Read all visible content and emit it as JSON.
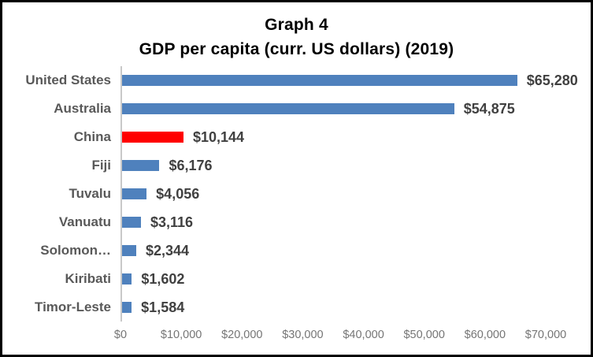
{
  "chart_data": {
    "type": "bar",
    "orientation": "horizontal",
    "title_line1": "Graph 4",
    "title_line2": "GDP per capita (curr. US dollars) (2019)",
    "categories": [
      "United States",
      "Australia",
      "China",
      "Fiji",
      "Tuvalu",
      "Vanuatu",
      "Solomon…",
      "Kiribati",
      "Timor-Leste"
    ],
    "values": [
      65280,
      54875,
      10144,
      6176,
      4056,
      3116,
      2344,
      1602,
      1584
    ],
    "value_labels": [
      "$65,280",
      "$54,875",
      "$10,144",
      "$6,176",
      "$4,056",
      "$3,116",
      "$2,344",
      "$1,602",
      "$1,584"
    ],
    "highlighted_category": "China",
    "bar_color": "#4F81BD",
    "highlight_color": "#FF0000",
    "xlim": [
      0,
      70000
    ],
    "x_ticks": [
      "$0",
      "$10,000",
      "$20,000",
      "$30,000",
      "$40,000",
      "$50,000",
      "$60,000",
      "$70,000"
    ],
    "grid": false,
    "legend": "none",
    "category_label_color": "#595959",
    "value_label_color": "#404040",
    "axis_line_color": "#C9C9C9",
    "tick_label_color": "#757575"
  }
}
